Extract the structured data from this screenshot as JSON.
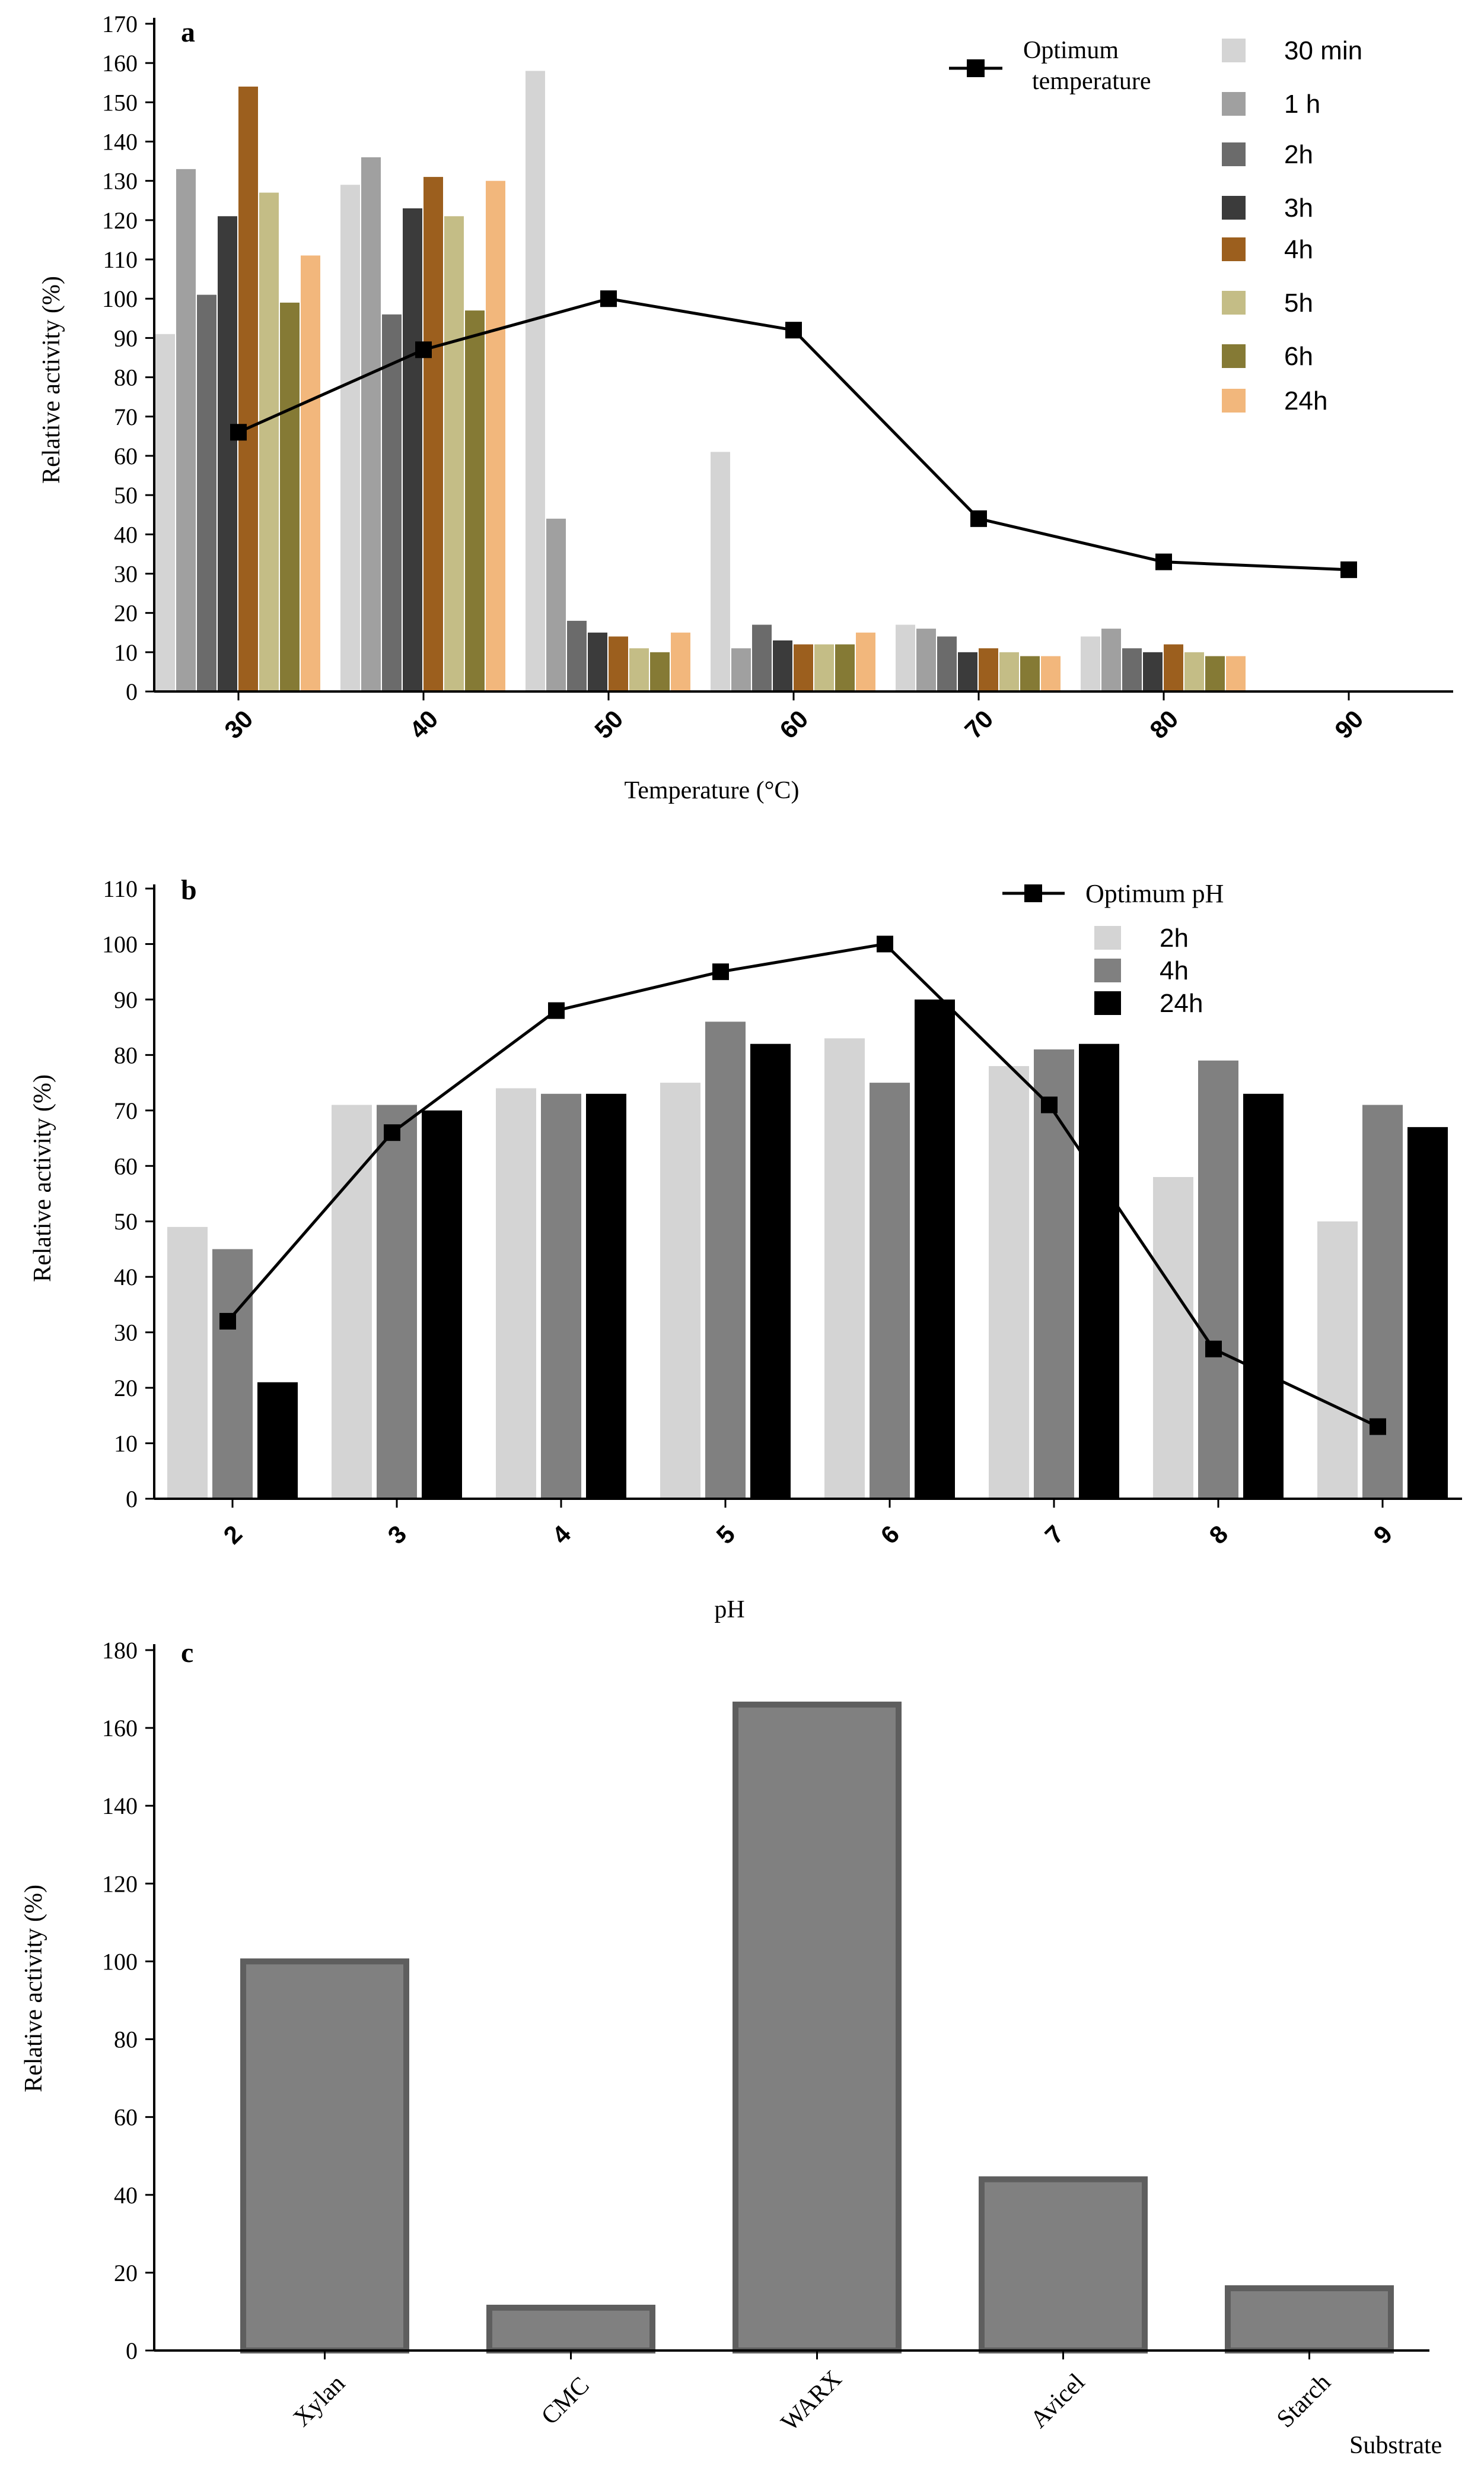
{
  "chart_data": [
    {
      "type": "bar",
      "panel_label": "a",
      "title": "",
      "xlabel": "Temperature (°C)",
      "ylabel": "Relative activity (%)",
      "ylim": [
        0,
        170
      ],
      "yticks": [
        0,
        10,
        20,
        30,
        40,
        50,
        60,
        70,
        80,
        90,
        100,
        110,
        120,
        130,
        140,
        150,
        160,
        170
      ],
      "x_tick_labels": [
        "30",
        "40",
        "50",
        "60",
        "70",
        "80",
        "90"
      ],
      "bar_groups": [
        "30",
        "40",
        "50",
        "60",
        "70",
        "80"
      ],
      "series": [
        {
          "name": "30 min",
          "color": "#d4d4d4",
          "values": [
            91,
            129,
            158,
            61,
            17,
            14
          ]
        },
        {
          "name": "1 h",
          "color": "#a0a0a0",
          "values": [
            133,
            136,
            44,
            11,
            16,
            16
          ]
        },
        {
          "name": "2h",
          "color": "#6b6b6b",
          "values": [
            101,
            96,
            18,
            17,
            14,
            11
          ]
        },
        {
          "name": "3h",
          "color": "#3b3b3b",
          "values": [
            121,
            123,
            15,
            13,
            10,
            10
          ]
        },
        {
          "name": "4h",
          "color": "#9c5f1e",
          "values": [
            154,
            131,
            14,
            12,
            11,
            12
          ]
        },
        {
          "name": "5h",
          "color": "#c4bd86",
          "values": [
            127,
            121,
            11,
            12,
            10,
            10
          ]
        },
        {
          "name": "6h",
          "color": "#857a35",
          "values": [
            99,
            97,
            10,
            12,
            9,
            9
          ]
        },
        {
          "name": "24h",
          "color": "#f2b77c",
          "values": [
            111,
            130,
            15,
            15,
            9,
            9
          ]
        }
      ],
      "line": {
        "name": "Optimum temperature",
        "legend_lines": [
          "Optimum",
          "temperature"
        ],
        "x": [
          30,
          40,
          50,
          60,
          70,
          80,
          90
        ],
        "y": [
          66,
          87,
          100,
          92,
          44,
          33,
          31
        ]
      },
      "legend_position": "top-right"
    },
    {
      "type": "bar",
      "panel_label": "b",
      "title": "",
      "xlabel": "pH",
      "ylabel": "Relative activity (%)",
      "ylim": [
        0,
        110
      ],
      "yticks": [
        0,
        10,
        20,
        30,
        40,
        50,
        60,
        70,
        80,
        90,
        100,
        110
      ],
      "categories": [
        "2",
        "3",
        "4",
        "5",
        "6",
        "7",
        "8",
        "9"
      ],
      "series": [
        {
          "name": "2h",
          "color": "#d4d4d4",
          "values": [
            49,
            71,
            74,
            75,
            83,
            78,
            58,
            50
          ]
        },
        {
          "name": "4h",
          "color": "#808080",
          "values": [
            45,
            71,
            73,
            86,
            75,
            81,
            79,
            71
          ]
        },
        {
          "name": "24h",
          "color": "#000000",
          "values": [
            21,
            70,
            73,
            82,
            90,
            82,
            73,
            67
          ]
        }
      ],
      "line": {
        "name": "Optimum pH",
        "x": [
          2,
          3,
          4,
          5,
          6,
          7,
          8,
          9
        ],
        "y": [
          32,
          66,
          88,
          95,
          100,
          71,
          27,
          13
        ]
      },
      "legend_position": "top-right"
    },
    {
      "type": "bar",
      "panel_label": "c",
      "title": "",
      "xlabel": "Substrate",
      "ylabel": "Relative activity (%)",
      "ylim": [
        0,
        180
      ],
      "yticks": [
        0,
        20,
        40,
        60,
        80,
        100,
        120,
        140,
        160,
        180
      ],
      "categories": [
        "Xylan",
        "CMC",
        "WARX",
        "Avicel",
        "Starch"
      ],
      "values": [
        100,
        11,
        166,
        44,
        16
      ],
      "fill": "#808080",
      "stroke": "#5e5e5e"
    }
  ]
}
